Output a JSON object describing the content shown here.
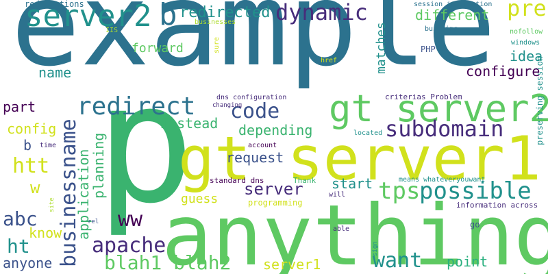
{
  "palette": {
    "blue": "#2c728e",
    "teal": "#21918c",
    "green": "#3ab36f",
    "lime": "#5ec962",
    "yellow": "#d1e11c",
    "purple": "#472d7b",
    "indigo": "#3b528b",
    "dark": "#440154",
    "seafoam": "#2ab07f",
    "light": "#addc30"
  },
  "words": [
    {
      "text": "example",
      "color": "#2c728e"
    },
    {
      "text": "p",
      "color": "#3ab36f"
    },
    {
      "text": "anything",
      "color": "#5ec962"
    },
    {
      "text": "gt server1",
      "color": "#d1e11c"
    },
    {
      "text": "gt server2",
      "color": "#5ec962"
    },
    {
      "text": "server2",
      "color": "#21918c"
    },
    {
      "text": "b",
      "color": "#2c728e"
    },
    {
      "text": "redirected",
      "color": "#21918c"
    },
    {
      "text": "dynamic",
      "color": "#472d7b"
    },
    {
      "text": "pre",
      "color": "#d1e11c"
    },
    {
      "text": "different",
      "color": "#5ec962"
    },
    {
      "text": "session information",
      "color": "#2c728e"
    },
    {
      "text": "building",
      "color": "#2c728e"
    },
    {
      "text": "nofollow",
      "color": "#5ec962"
    },
    {
      "text": "windows",
      "color": "#21918c"
    },
    {
      "text": "preserving session",
      "color": "#21918c"
    },
    {
      "text": "redirections",
      "color": "#2c728e"
    },
    {
      "text": "IIS",
      "color": "#addc30"
    },
    {
      "text": "businesses",
      "color": "#addc30"
    },
    {
      "text": "sure",
      "color": "#d1e11c"
    },
    {
      "text": "forward",
      "color": "#5ec962"
    },
    {
      "text": "matches",
      "color": "#21918c"
    },
    {
      "text": "PHP",
      "color": "#3b528b"
    },
    {
      "text": "idea",
      "color": "#21918c"
    },
    {
      "text": "configure",
      "color": "#440154"
    },
    {
      "text": "name",
      "color": "#21918c"
    },
    {
      "text": "href",
      "color": "#d1e11c"
    },
    {
      "text": "redirect",
      "color": "#2c728e"
    },
    {
      "text": "code",
      "color": "#3b528b"
    },
    {
      "text": "dns configuration",
      "color": "#472d7b"
    },
    {
      "text": "criterias Problem",
      "color": "#472d7b"
    },
    {
      "text": "changing",
      "color": "#472d7b"
    },
    {
      "text": "part",
      "color": "#440154"
    },
    {
      "text": "businessname",
      "color": "#3b528b"
    },
    {
      "text": "instead",
      "color": "#3ab36f"
    },
    {
      "text": "depending",
      "color": "#3ab36f"
    },
    {
      "text": "subdomain",
      "color": "#472d7b"
    },
    {
      "text": "config",
      "color": "#d1e11c"
    },
    {
      "text": "b",
      "color": "#3b528b"
    },
    {
      "text": "time",
      "color": "#472d7b"
    },
    {
      "text": "account",
      "color": "#440154"
    },
    {
      "text": "located",
      "color": "#21918c"
    },
    {
      "text": "htt",
      "color": "#d1e11c"
    },
    {
      "text": "request",
      "color": "#3b528b"
    },
    {
      "text": "w",
      "color": "#d1e11c"
    },
    {
      "text": "application",
      "color": "#3ab36f"
    },
    {
      "text": "planning",
      "color": "#3ab36f"
    },
    {
      "text": "standard dns",
      "color": "#440154"
    },
    {
      "text": "Thank",
      "color": "#3ab36f"
    },
    {
      "text": "means whateveryouwant",
      "color": "#21918c"
    },
    {
      "text": "server",
      "color": "#472d7b"
    },
    {
      "text": "start",
      "color": "#21918c"
    },
    {
      "text": "tps",
      "color": "#5ec962"
    },
    {
      "text": "possible",
      "color": "#21918c"
    },
    {
      "text": "will",
      "color": "#472d7b"
    },
    {
      "text": "site",
      "color": "#addc30"
    },
    {
      "text": "guess",
      "color": "#d1e11c"
    },
    {
      "text": "programming",
      "color": "#d1e11c"
    },
    {
      "text": "information across",
      "color": "#472d7b"
    },
    {
      "text": "abc",
      "color": "#3b528b"
    },
    {
      "text": "ww",
      "color": "#440154"
    },
    {
      "text": "rel",
      "color": "#3b528b"
    },
    {
      "text": "go",
      "color": "#3b528b"
    },
    {
      "text": "know",
      "color": "#d1e11c"
    },
    {
      "text": "able",
      "color": "#472d7b"
    },
    {
      "text": "ht",
      "color": "#21918c"
    },
    {
      "text": "apache",
      "color": "#472d7b"
    },
    {
      "text": "sign",
      "color": "#21918c"
    },
    {
      "text": "anyone",
      "color": "#3b528b"
    },
    {
      "text": "blah1 blah2",
      "color": "#5ec962"
    },
    {
      "text": "server1",
      "color": "#d1e11c"
    },
    {
      "text": "want",
      "color": "#21918c"
    },
    {
      "text": "point",
      "color": "#2ab07f"
    }
  ]
}
